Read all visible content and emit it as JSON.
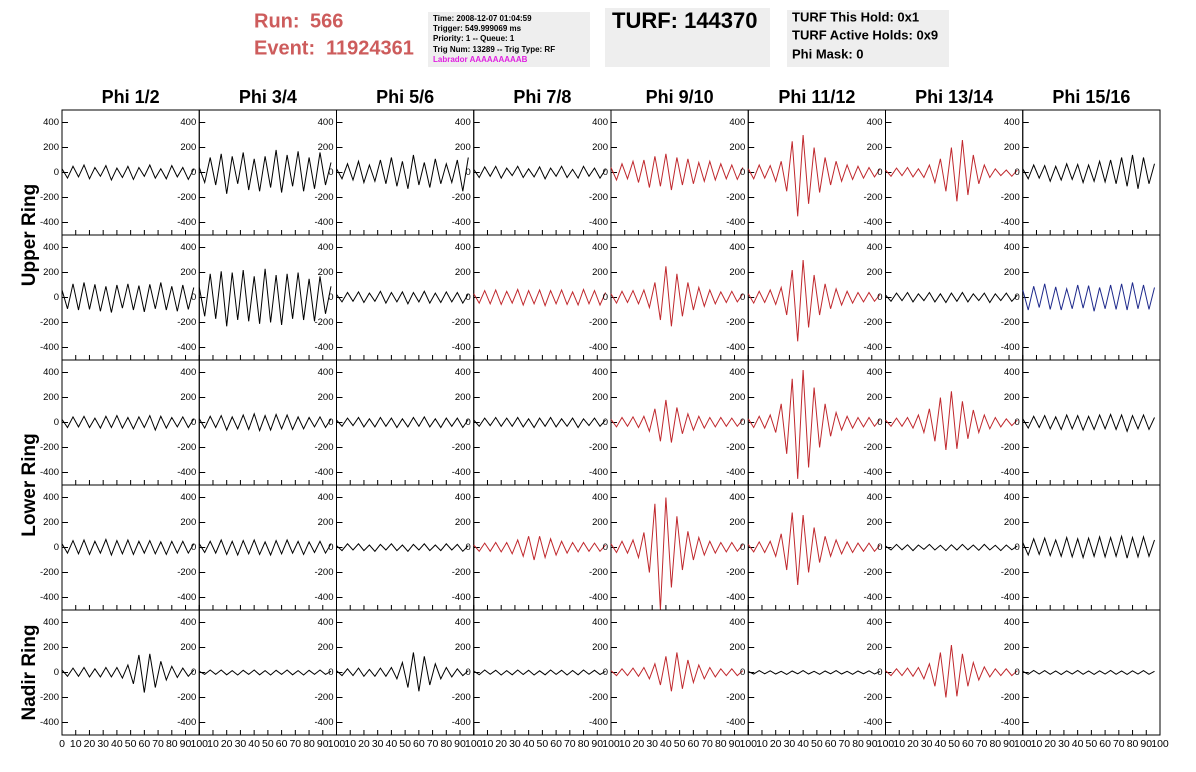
{
  "header": {
    "run_label": "Run:",
    "run": "566",
    "event_label": "Event:",
    "event": "11924361",
    "info": [
      "Time: 2008-12-07 01:04:59",
      "Trigger: 549.999069 ms",
      "Priority: 1 -- Queue: 1",
      "Trig Num: 13289 -- Trig Type: RF"
    ],
    "labrador": "Labrador AAAAAAAAAB",
    "turf": "TURF: 144370",
    "turf_info": [
      "TURF This Hold: 0x1",
      "TURF Active Holds: 0x9",
      "Phi Mask: 0"
    ]
  },
  "columns": [
    "Phi 1/2",
    "Phi 3/4",
    "Phi 5/6",
    "Phi 7/8",
    "Phi 9/10",
    "Phi 11/12",
    "Phi 13/14",
    "Phi 15/16"
  ],
  "ring_labels": [
    "Upper Ring",
    "Lower Ring",
    "Nadir Ring"
  ],
  "axes": {
    "xlim": [
      0,
      100
    ],
    "xticks": [
      0,
      10,
      20,
      30,
      40,
      50,
      60,
      70,
      80,
      90,
      100
    ],
    "ylim": [
      -500,
      500
    ],
    "yticks": [
      -400,
      -200,
      0,
      200,
      400
    ],
    "x": [
      0,
      4,
      8,
      12,
      16,
      20,
      24,
      28,
      32,
      36,
      40,
      44,
      48,
      52,
      56,
      60,
      64,
      68,
      72,
      76,
      80,
      84,
      88,
      92,
      96
    ]
  },
  "panels": [
    [
      {
        "color": "#000000",
        "values": [
          30,
          -45,
          50,
          -35,
          60,
          -50,
          40,
          -30,
          55,
          -60,
          35,
          -40,
          50,
          -55,
          40,
          -30,
          60,
          -45,
          30,
          -50,
          55,
          -35,
          40,
          -55,
          30
        ]
      },
      {
        "color": "#000000",
        "values": [
          40,
          -80,
          120,
          -100,
          150,
          -170,
          130,
          -90,
          160,
          -140,
          110,
          -150,
          130,
          -120,
          180,
          -160,
          140,
          -110,
          170,
          -150,
          120,
          -130,
          160,
          -100,
          80
        ]
      },
      {
        "color": "#000000",
        "values": [
          30,
          -50,
          70,
          -60,
          90,
          -80,
          60,
          -70,
          100,
          -90,
          120,
          -110,
          90,
          -130,
          140,
          -100,
          80,
          -120,
          110,
          -90,
          70,
          -80,
          100,
          -150,
          120
        ]
      },
      {
        "color": "#000000",
        "values": [
          25,
          -40,
          45,
          -30,
          50,
          -45,
          35,
          -25,
          50,
          -40,
          30,
          -35,
          45,
          -50,
          35,
          -30,
          50,
          -40,
          25,
          -45,
          50,
          -30,
          35,
          -45,
          25
        ]
      },
      {
        "color": "#c0282d",
        "values": [
          40,
          -60,
          70,
          -50,
          90,
          -80,
          100,
          -120,
          130,
          -110,
          150,
          -140,
          120,
          -100,
          110,
          -90,
          80,
          -70,
          90,
          -60,
          70,
          -50,
          60,
          -55,
          40
        ]
      },
      {
        "color": "#c0282d",
        "values": [
          30,
          -50,
          60,
          -45,
          55,
          -70,
          90,
          -150,
          250,
          -350,
          300,
          -250,
          200,
          -160,
          120,
          -100,
          90,
          -70,
          60,
          -55,
          50,
          -45,
          40,
          -35,
          30
        ]
      },
      {
        "color": "#c0282d",
        "values": [
          20,
          -30,
          35,
          -25,
          40,
          -35,
          30,
          -40,
          60,
          -80,
          110,
          -150,
          200,
          -230,
          260,
          -180,
          140,
          -90,
          60,
          -40,
          30,
          -25,
          20,
          -30,
          20
        ]
      },
      {
        "color": "#000000",
        "values": [
          30,
          -50,
          60,
          -45,
          55,
          -70,
          50,
          -60,
          70,
          -55,
          65,
          -80,
          60,
          -70,
          90,
          -75,
          100,
          -90,
          120,
          -110,
          140,
          -130,
          120,
          -90,
          70
        ]
      }
    ],
    [
      {
        "color": "#000000",
        "values": [
          60,
          -90,
          110,
          -100,
          120,
          -95,
          105,
          -110,
          90,
          -120,
          100,
          -85,
          110,
          -100,
          95,
          -115,
          105,
          -90,
          120,
          -100,
          90,
          -110,
          100,
          -95,
          80
        ]
      },
      {
        "color": "#000000",
        "values": [
          80,
          -150,
          190,
          -170,
          210,
          -230,
          200,
          -180,
          220,
          -190,
          170,
          -210,
          230,
          -200,
          180,
          -220,
          190,
          -170,
          200,
          -180,
          150,
          -190,
          170,
          -130,
          90
        ]
      },
      {
        "color": "#000000",
        "values": [
          25,
          -35,
          40,
          -30,
          45,
          -40,
          35,
          -30,
          50,
          -45,
          40,
          -35,
          45,
          -50,
          40,
          -35,
          50,
          -45,
          35,
          -40,
          45,
          -35,
          40,
          -45,
          30
        ]
      },
      {
        "color": "#c0282d",
        "values": [
          30,
          -45,
          55,
          -50,
          60,
          -55,
          50,
          -45,
          65,
          -60,
          55,
          -50,
          60,
          -65,
          55,
          -50,
          60,
          -55,
          45,
          -60,
          65,
          -50,
          55,
          -60,
          40
        ]
      },
      {
        "color": "#c0282d",
        "values": [
          30,
          -45,
          50,
          -40,
          55,
          -50,
          60,
          -80,
          120,
          -180,
          250,
          -230,
          190,
          -150,
          120,
          -100,
          80,
          -70,
          60,
          -50,
          45,
          -40,
          50,
          -35,
          30
        ]
      },
      {
        "color": "#c0282d",
        "values": [
          30,
          -45,
          50,
          -40,
          60,
          -55,
          80,
          -140,
          220,
          -350,
          300,
          -240,
          180,
          -140,
          110,
          -90,
          70,
          -60,
          50,
          -45,
          40,
          -35,
          40,
          -30,
          25
        ]
      },
      {
        "color": "#000000",
        "values": [
          20,
          -30,
          35,
          -25,
          40,
          -35,
          30,
          -25,
          40,
          -35,
          30,
          -40,
          35,
          -30,
          40,
          -35,
          30,
          -25,
          35,
          -40,
          30,
          -25,
          35,
          -30,
          20
        ]
      },
      {
        "color": "#1f2a8c",
        "values": [
          60,
          -100,
          90,
          -80,
          110,
          -95,
          85,
          -100,
          70,
          -90,
          100,
          -85,
          95,
          -110,
          80,
          -90,
          100,
          -95,
          110,
          -100,
          120,
          -90,
          100,
          -95,
          80
        ]
      }
    ],
    [
      {
        "color": "#000000",
        "values": [
          25,
          -40,
          45,
          -35,
          50,
          -40,
          35,
          -45,
          50,
          -40,
          55,
          -45,
          40,
          -50,
          45,
          -40,
          55,
          -60,
          50,
          -45,
          40,
          -35,
          45,
          -40,
          30
        ]
      },
      {
        "color": "#000000",
        "values": [
          30,
          -45,
          50,
          -40,
          55,
          -60,
          45,
          -50,
          60,
          -55,
          70,
          -65,
          55,
          -60,
          65,
          -50,
          60,
          -55,
          45,
          -50,
          40,
          -35,
          45,
          -40,
          30
        ]
      },
      {
        "color": "#000000",
        "values": [
          20,
          -30,
          35,
          -25,
          40,
          -35,
          30,
          -35,
          40,
          -30,
          35,
          -40,
          30,
          -35,
          40,
          -30,
          45,
          -35,
          30,
          -40,
          35,
          -30,
          35,
          -40,
          25
        ]
      },
      {
        "color": "#000000",
        "values": [
          20,
          -30,
          35,
          -25,
          40,
          -30,
          35,
          -30,
          40,
          -35,
          30,
          -40,
          35,
          -30,
          40,
          -35,
          30,
          -30,
          35,
          -40,
          30,
          -25,
          35,
          -30,
          20
        ]
      },
      {
        "color": "#c0282d",
        "values": [
          25,
          -35,
          40,
          -30,
          45,
          -40,
          50,
          -70,
          110,
          -150,
          180,
          -160,
          120,
          -90,
          70,
          -60,
          50,
          -45,
          40,
          -35,
          40,
          -30,
          35,
          -30,
          25
        ]
      },
      {
        "color": "#c0282d",
        "values": [
          30,
          -40,
          50,
          -45,
          60,
          -80,
          150,
          -250,
          350,
          -450,
          420,
          -360,
          280,
          -200,
          150,
          -110,
          80,
          -60,
          50,
          -45,
          40,
          -35,
          40,
          -30,
          25
        ]
      },
      {
        "color": "#c0282d",
        "values": [
          20,
          -30,
          35,
          -30,
          40,
          -45,
          60,
          -80,
          110,
          -150,
          200,
          -220,
          250,
          -210,
          170,
          -130,
          100,
          -80,
          60,
          -50,
          40,
          -35,
          30,
          -25,
          20
        ]
      },
      {
        "color": "#000000",
        "values": [
          30,
          -45,
          50,
          -40,
          55,
          -50,
          45,
          -55,
          60,
          -50,
          55,
          -60,
          50,
          -55,
          60,
          -50,
          65,
          -55,
          60,
          -70,
          55,
          -50,
          60,
          -55,
          40
        ]
      }
    ],
    [
      {
        "color": "#000000",
        "values": [
          30,
          -45,
          55,
          -50,
          60,
          -55,
          50,
          -45,
          65,
          -60,
          55,
          -50,
          60,
          -55,
          50,
          -45,
          55,
          -50,
          45,
          -55,
          50,
          -45,
          50,
          -45,
          30
        ]
      },
      {
        "color": "#000000",
        "values": [
          30,
          -40,
          50,
          -45,
          60,
          -55,
          50,
          -60,
          55,
          -50,
          60,
          -55,
          45,
          -60,
          55,
          -50,
          60,
          -45,
          50,
          -55,
          45,
          -40,
          50,
          -45,
          30
        ]
      },
      {
        "color": "#000000",
        "values": [
          15,
          -25,
          30,
          -20,
          30,
          -25,
          20,
          -30,
          25,
          -20,
          30,
          -25,
          20,
          -30,
          25,
          -20,
          30,
          -25,
          20,
          -25,
          30,
          -20,
          25,
          -30,
          15
        ]
      },
      {
        "color": "#c0282d",
        "values": [
          20,
          -30,
          35,
          -30,
          40,
          -35,
          40,
          -50,
          60,
          -70,
          90,
          -100,
          90,
          -80,
          70,
          -60,
          50,
          -45,
          40,
          -35,
          40,
          -30,
          35,
          -30,
          20
        ]
      },
      {
        "color": "#c0282d",
        "values": [
          30,
          -40,
          50,
          -45,
          60,
          -80,
          120,
          -200,
          350,
          -500,
          400,
          -320,
          250,
          -180,
          130,
          -100,
          80,
          -60,
          50,
          -45,
          40,
          -35,
          40,
          -30,
          25
        ]
      },
      {
        "color": "#c0282d",
        "values": [
          25,
          -35,
          45,
          -40,
          50,
          -70,
          110,
          -180,
          280,
          -300,
          260,
          -200,
          160,
          -120,
          90,
          -70,
          60,
          -50,
          45,
          -40,
          35,
          -30,
          35,
          -30,
          20
        ]
      },
      {
        "color": "#000000",
        "values": [
          12,
          -20,
          25,
          -18,
          22,
          -25,
          20,
          -15,
          25,
          -20,
          18,
          -25,
          22,
          -20,
          25,
          -18,
          20,
          -22,
          25,
          -20,
          18,
          -25,
          20,
          -18,
          12
        ]
      },
      {
        "color": "#000000",
        "values": [
          40,
          -60,
          70,
          -55,
          75,
          -65,
          60,
          -70,
          80,
          -75,
          70,
          -80,
          75,
          -70,
          85,
          -75,
          80,
          -70,
          90,
          -85,
          80,
          -75,
          85,
          -70,
          60
        ]
      }
    ],
    [
      {
        "color": "#000000",
        "values": [
          20,
          -30,
          35,
          -30,
          40,
          -35,
          30,
          -35,
          40,
          -35,
          40,
          -45,
          60,
          -90,
          140,
          -160,
          150,
          -120,
          90,
          -60,
          50,
          -40,
          35,
          -30,
          20
        ]
      },
      {
        "color": "#000000",
        "values": [
          10,
          -15,
          20,
          -15,
          20,
          -18,
          15,
          -20,
          18,
          -15,
          20,
          -18,
          15,
          -20,
          18,
          -15,
          20,
          -18,
          15,
          -20,
          18,
          -15,
          20,
          -15,
          10
        ]
      },
      {
        "color": "#000000",
        "values": [
          15,
          -25,
          30,
          -25,
          35,
          -30,
          25,
          -30,
          35,
          -30,
          40,
          -50,
          80,
          -120,
          160,
          -150,
          130,
          -100,
          70,
          -50,
          40,
          -35,
          30,
          -25,
          15
        ]
      },
      {
        "color": "#000000",
        "values": [
          12,
          -18,
          20,
          -14,
          18,
          -20,
          15,
          -18,
          20,
          -16,
          18,
          -20,
          14,
          -18,
          20,
          -15,
          18,
          -20,
          16,
          -18,
          20,
          -14,
          18,
          -16,
          10
        ]
      },
      {
        "color": "#c0282d",
        "values": [
          15,
          -25,
          30,
          -25,
          35,
          -30,
          40,
          -50,
          70,
          -100,
          130,
          -150,
          160,
          -130,
          100,
          -80,
          60,
          -50,
          40,
          -35,
          30,
          -25,
          30,
          -25,
          15
        ]
      },
      {
        "color": "#000000",
        "values": [
          8,
          -12,
          15,
          -10,
          14,
          -12,
          10,
          -15,
          12,
          -10,
          15,
          -12,
          10,
          -14,
          12,
          -10,
          15,
          -12,
          10,
          -14,
          12,
          -10,
          14,
          -12,
          8
        ]
      },
      {
        "color": "#c0282d",
        "values": [
          15,
          -25,
          30,
          -25,
          35,
          -30,
          40,
          -50,
          70,
          -110,
          160,
          -200,
          220,
          -190,
          150,
          -110,
          80,
          -60,
          45,
          -35,
          30,
          -25,
          30,
          -25,
          15
        ]
      },
      {
        "color": "#000000",
        "values": [
          10,
          -14,
          16,
          -12,
          15,
          -14,
          12,
          -16,
          14,
          -12,
          16,
          -14,
          12,
          -15,
          14,
          -12,
          16,
          -14,
          12,
          -15,
          14,
          -12,
          15,
          -14,
          10
        ]
      }
    ]
  ]
}
